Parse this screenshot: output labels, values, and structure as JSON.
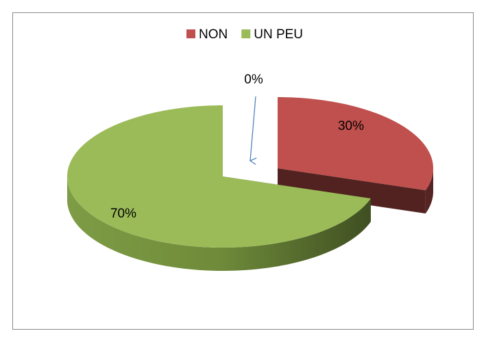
{
  "chart_data": {
    "type": "pie",
    "categories": [
      "NON",
      "UN PEU",
      null
    ],
    "values": [
      30,
      70,
      0
    ],
    "value_labels": [
      "30%",
      "70%",
      "0%"
    ],
    "colors": [
      "#c0504d",
      "#9bbb59",
      "#4f81bd"
    ],
    "legend": "top"
  }
}
